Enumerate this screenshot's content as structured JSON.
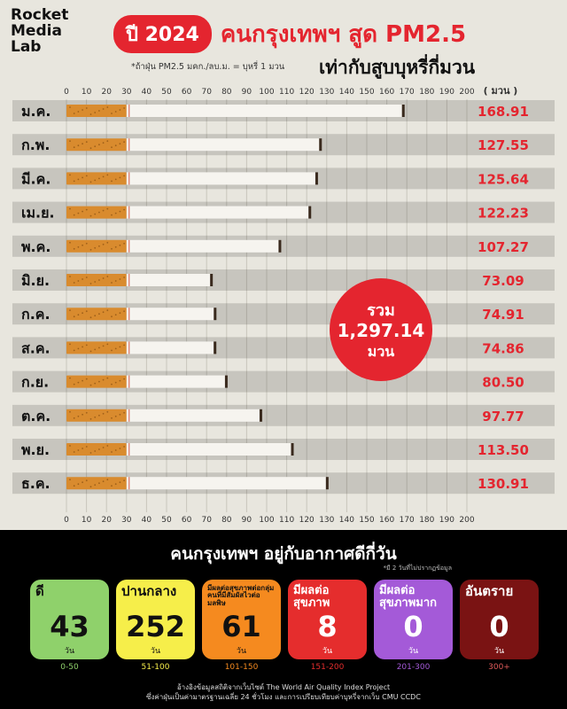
{
  "brand": {
    "line1": "Rocket",
    "line2": "Media",
    "line3": "Lab"
  },
  "header": {
    "pill": "ปี 2024",
    "title": "คนกรุงเทพฯ สูด PM2.5",
    "note": "*ถ้าฝุ่น PM2.5 มคก./ลบ.ม. = บุหรี่ 1 มวน",
    "subtitle": "เท่ากับสูบบุหรี่กี่มวน"
  },
  "chart_data": {
    "type": "bar",
    "orientation": "horizontal",
    "unit_label": "( มวน )",
    "categories": [
      "ม.ค.",
      "ก.พ.",
      "มี.ค.",
      "เม.ย.",
      "พ.ค.",
      "มิ.ย.",
      "ก.ค.",
      "ส.ค.",
      "ก.ย.",
      "ต.ค.",
      "พ.ย.",
      "ธ.ค."
    ],
    "values": [
      168.91,
      127.55,
      125.64,
      122.23,
      107.27,
      73.09,
      74.91,
      74.86,
      80.5,
      97.77,
      113.5,
      130.91
    ],
    "value_labels": [
      "168.91",
      "127.55",
      "125.64",
      "122.23",
      "107.27",
      "73.09",
      "74.91",
      "74.86",
      "80.50",
      "97.77",
      "113.50",
      "130.91"
    ],
    "xlim": [
      0,
      200
    ],
    "xticks": [
      0,
      10,
      20,
      30,
      40,
      50,
      60,
      70,
      80,
      90,
      100,
      110,
      120,
      130,
      140,
      150,
      160,
      170,
      180,
      190,
      200
    ],
    "grid": true,
    "total": {
      "line1": "รวม",
      "value": "1,297.14",
      "line2": "มวน"
    }
  },
  "colors": {
    "accent": "#e4252f",
    "filter": "#d98b2e",
    "paper": "#f6f4ef"
  },
  "air_quality": {
    "title": "คนกรุงเทพฯ อยู่กับอากาศดีกี่วัน",
    "note": "*มี 2 วันที่ไม่ปรากฏข้อมูล",
    "unit": "วัน",
    "levels": [
      {
        "label": "ดี",
        "days": "43",
        "range": "0-50",
        "color": "#8fd16b",
        "text": "#111111",
        "range_color": "#8fd16b"
      },
      {
        "label": "ปานกลาง",
        "days": "252",
        "range": "51-100",
        "color": "#f6ee4a",
        "text": "#111111",
        "range_color": "#f6ee4a"
      },
      {
        "label": "มีผลต่อสุขภาพต่อกลุ่มคนที่มีสัมผัสไวต่อมลพิษ",
        "days": "61",
        "range": "101-150",
        "color": "#f58a1f",
        "text": "#111111",
        "range_color": "#f58a1f"
      },
      {
        "label": "มีผลต่อสุขภาพ",
        "days": "8",
        "range": "151-200",
        "color": "#e52d2d",
        "text": "#ffffff",
        "range_color": "#e52d2d"
      },
      {
        "label": "มีผลต่อสุขภาพมาก",
        "days": "0",
        "range": "201-300",
        "color": "#a45ad8",
        "text": "#ffffff",
        "range_color": "#a45ad8"
      },
      {
        "label": "อันตราย",
        "days": "0",
        "range": "300+",
        "color": "#7a1313",
        "text": "#ffffff",
        "range_color": "#e05a5a"
      }
    ],
    "source1": "อ้างอิงข้อมูลสถิติจากเว็บไซต์ The World Air Quality Index Project",
    "source2": "ซึ่งค่าฝุ่นเป็นค่ามาตรฐานเฉลี่ย 24 ชั่วโมง และการเปรียบเทียบค่าบุหรี่จากเว็บ CMU CCDC"
  }
}
